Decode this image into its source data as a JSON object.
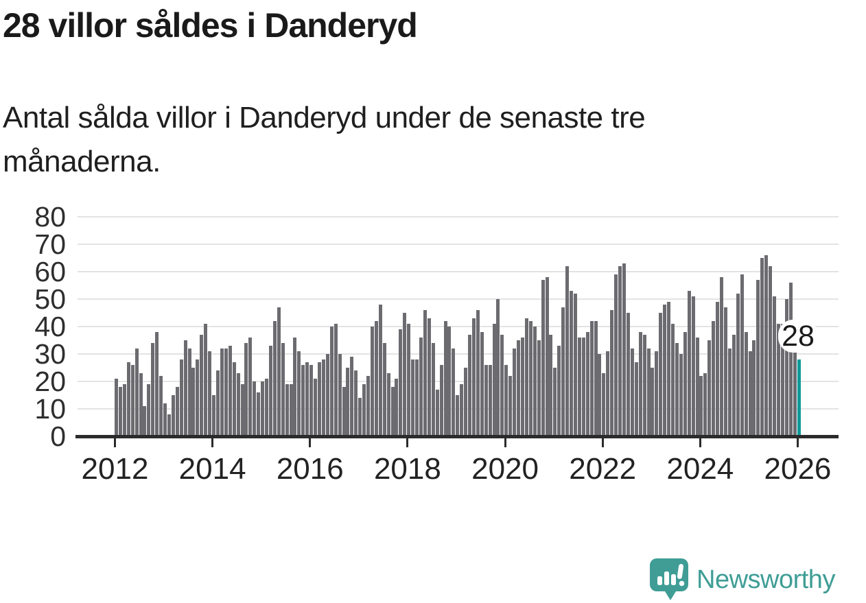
{
  "header": {
    "title": "28 villor såldes i Danderyd",
    "subtitle": "Antal sålda villor i Danderyd under de senaste tre månaderna."
  },
  "chart_data": {
    "type": "bar",
    "title": "28 villor såldes i Danderyd",
    "description": "Antal sålda villor i Danderyd under de senaste tre månaderna.",
    "x_start_month": "2012-01",
    "x_end_month": "2026-01",
    "x_tick_labels": [
      "2012",
      "2014",
      "2016",
      "2018",
      "2020",
      "2022",
      "2024",
      "2026"
    ],
    "y_tick_labels": [
      "0",
      "10",
      "20",
      "30",
      "40",
      "50",
      "60",
      "70",
      "80"
    ],
    "ylim": [
      0,
      80
    ],
    "grid": true,
    "bar_color": "#6c6b70",
    "grid_color": "#e3e3e3",
    "axis_color": "#2b2b2b",
    "values": [
      21,
      18,
      19,
      27,
      26,
      32,
      23,
      11,
      19,
      34,
      38,
      22,
      12,
      8,
      15,
      18,
      28,
      35,
      32,
      25,
      28,
      37,
      41,
      31,
      15,
      24,
      32,
      32,
      33,
      27,
      23,
      19,
      34,
      36,
      20,
      16,
      20,
      21,
      33,
      42,
      47,
      34,
      19,
      19,
      36,
      31,
      26,
      27,
      26,
      21,
      27,
      28,
      30,
      40,
      41,
      30,
      18,
      25,
      29,
      24,
      14,
      19,
      22,
      40,
      42,
      48,
      34,
      23,
      18,
      21,
      39,
      45,
      41,
      28,
      28,
      36,
      46,
      43,
      34,
      17,
      26,
      42,
      40,
      32,
      15,
      19,
      25,
      37,
      43,
      46,
      38,
      26,
      26,
      41,
      50,
      37,
      26,
      22,
      32,
      35,
      36,
      43,
      42,
      40,
      35,
      57,
      58,
      37,
      25,
      33,
      47,
      62,
      53,
      52,
      36,
      36,
      38,
      42,
      42,
      30,
      23,
      31,
      46,
      59,
      62,
      63,
      45,
      32,
      27,
      38,
      37,
      32,
      25,
      31,
      45,
      48,
      49,
      41,
      34,
      30,
      38,
      53,
      51,
      36,
      22,
      23,
      35,
      42,
      49,
      58,
      47,
      32,
      37,
      52,
      59,
      38,
      31,
      35,
      57,
      65,
      66,
      62,
      51,
      41,
      41,
      50,
      56,
      31,
      28
    ],
    "highlight": {
      "index": 168,
      "value": 28,
      "label": "28",
      "color": "#0f9b9a"
    }
  },
  "footer": {
    "brand": "Newsworthy",
    "brand_color": "#3f9d96",
    "logo_icon": "newsworthy-speech-bubble-chart-icon"
  }
}
